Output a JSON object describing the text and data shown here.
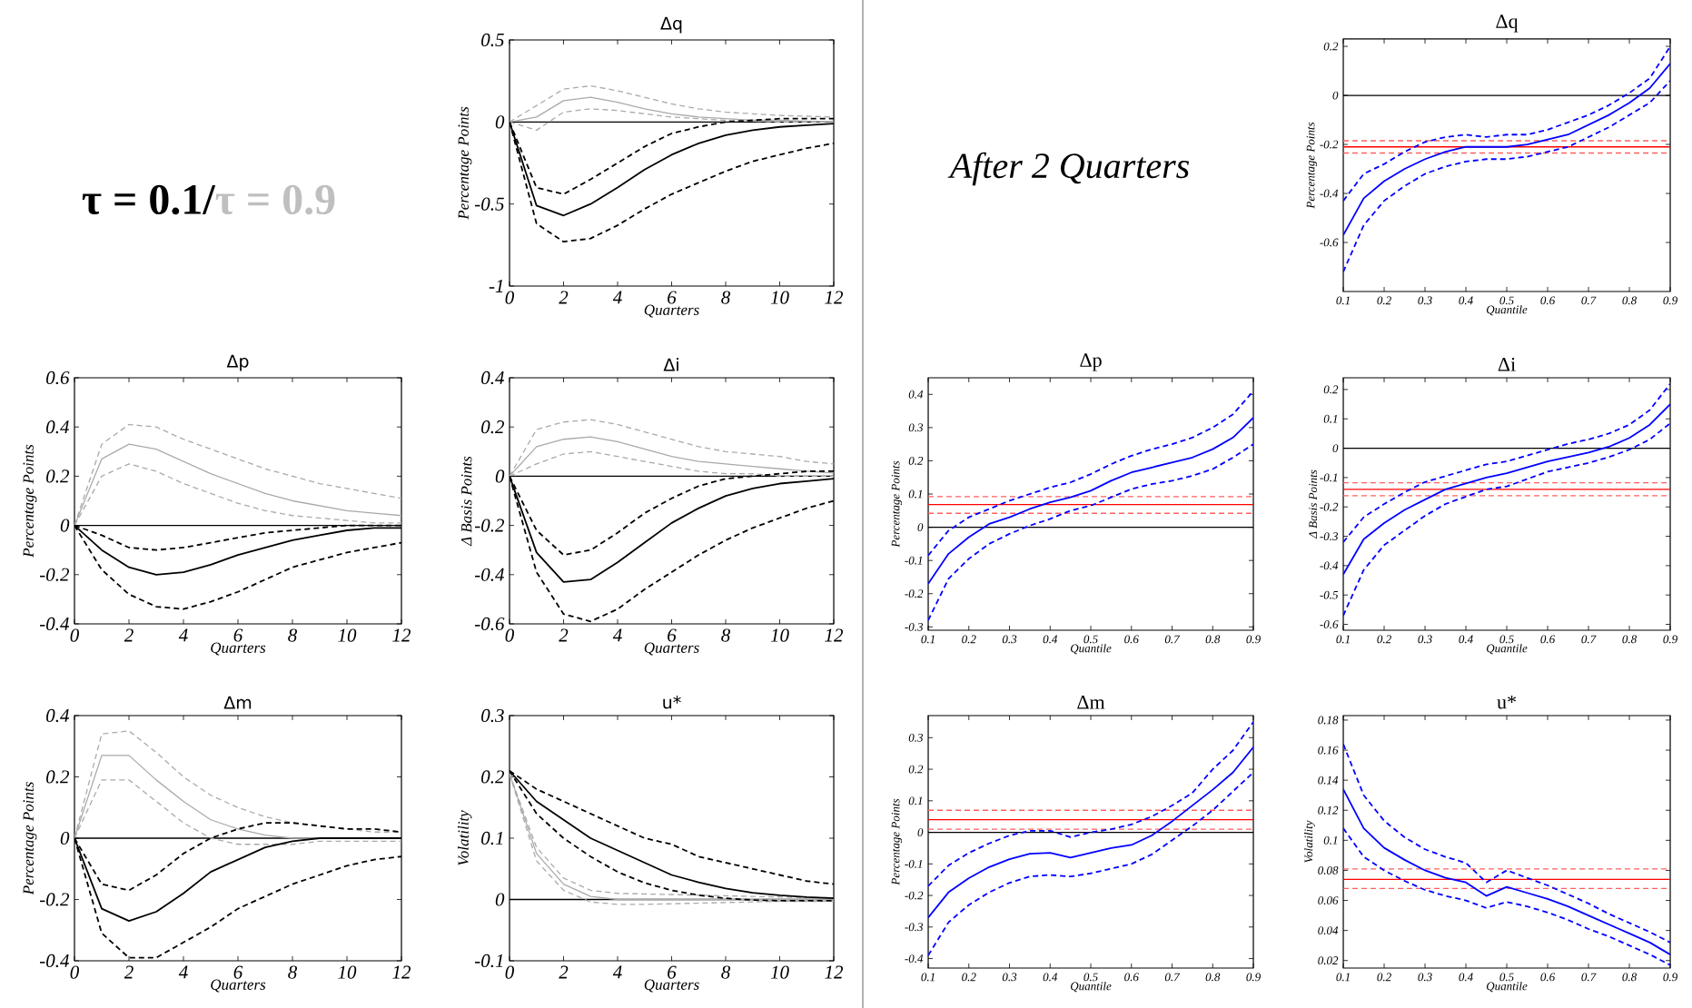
{
  "chart_data": [
    {
      "type": "other",
      "annotations": [
        "τ = 0.1/",
        "τ = 0.9"
      ]
    },
    {
      "type": "line",
      "title": "Δq",
      "xlabel": "Quarters",
      "ylabel": "Percentage Points",
      "x": [
        0,
        1,
        2,
        3,
        4,
        5,
        6,
        7,
        8,
        9,
        10,
        11,
        12
      ],
      "xlim": [
        0,
        12
      ],
      "xticks": [
        0,
        2,
        4,
        6,
        8,
        10,
        12
      ],
      "ylim": [
        -1,
        0.5
      ],
      "yticks": [
        -1,
        -0.5,
        0,
        0.5
      ],
      "marker": "none",
      "series": [
        {
          "color": "#aaaaaa",
          "line_style": "solid",
          "values": [
            0,
            0.03,
            0.13,
            0.15,
            0.12,
            0.08,
            0.05,
            0.03,
            0.02,
            0.01,
            0.01,
            0.005,
            0
          ]
        },
        {
          "color": "#aaaaaa",
          "line_style": "dashed",
          "values": [
            0,
            0.1,
            0.2,
            0.22,
            0.19,
            0.15,
            0.11,
            0.08,
            0.06,
            0.05,
            0.04,
            0.035,
            0.03
          ]
        },
        {
          "color": "#aaaaaa",
          "line_style": "dashed",
          "values": [
            0,
            -0.05,
            0.06,
            0.08,
            0.07,
            0.05,
            0.03,
            0.02,
            0.01,
            0.005,
            0,
            0,
            0
          ]
        },
        {
          "color": "#000000",
          "line_style": "solid",
          "values": [
            0,
            -0.51,
            -0.57,
            -0.5,
            -0.4,
            -0.29,
            -0.2,
            -0.13,
            -0.08,
            -0.05,
            -0.03,
            -0.02,
            -0.01
          ]
        },
        {
          "color": "#000000",
          "line_style": "dashed",
          "values": [
            0,
            -0.4,
            -0.44,
            -0.35,
            -0.25,
            -0.15,
            -0.07,
            -0.03,
            0,
            0.01,
            0.02,
            0.02,
            0.02
          ]
        },
        {
          "color": "#000000",
          "line_style": "dashed",
          "values": [
            0,
            -0.62,
            -0.73,
            -0.71,
            -0.63,
            -0.53,
            -0.44,
            -0.37,
            -0.3,
            -0.24,
            -0.2,
            -0.16,
            -0.13
          ]
        }
      ],
      "ref_lines": [
        {
          "axis": "y",
          "value": 0,
          "color": "#000000",
          "line_style": "solid"
        }
      ]
    },
    {
      "type": "other",
      "title": "After 2 Quarters"
    },
    {
      "type": "line",
      "title": "Δq",
      "xlabel": "Quantile",
      "ylabel": "Percentage Points",
      "x": [
        0.1,
        0.15,
        0.2,
        0.25,
        0.3,
        0.35,
        0.4,
        0.45,
        0.5,
        0.55,
        0.6,
        0.65,
        0.7,
        0.75,
        0.8,
        0.85,
        0.9
      ],
      "xlim": [
        0.1,
        0.9
      ],
      "xticks": [
        0.1,
        0.2,
        0.3,
        0.4,
        0.5,
        0.6,
        0.7,
        0.8,
        0.9
      ],
      "ylim": [
        -0.8,
        0.23
      ],
      "yticks": [
        -0.6,
        -0.4,
        -0.2,
        0,
        0.2
      ],
      "marker": "none",
      "series": [
        {
          "color": "#0000ff",
          "line_style": "solid",
          "values": [
            -0.57,
            -0.42,
            -0.35,
            -0.3,
            -0.26,
            -0.23,
            -0.21,
            -0.21,
            -0.21,
            -0.2,
            -0.18,
            -0.16,
            -0.12,
            -0.08,
            -0.03,
            0.03,
            0.13
          ]
        },
        {
          "color": "#0000ff",
          "line_style": "dashed",
          "values": [
            -0.43,
            -0.32,
            -0.28,
            -0.23,
            -0.19,
            -0.17,
            -0.16,
            -0.17,
            -0.16,
            -0.16,
            -0.14,
            -0.11,
            -0.08,
            -0.04,
            0.01,
            0.07,
            0.2
          ]
        },
        {
          "color": "#0000ff",
          "line_style": "dashed",
          "values": [
            -0.72,
            -0.53,
            -0.43,
            -0.37,
            -0.32,
            -0.29,
            -0.27,
            -0.26,
            -0.26,
            -0.25,
            -0.23,
            -0.21,
            -0.17,
            -0.13,
            -0.08,
            -0.03,
            0.06
          ]
        }
      ],
      "ref_lines": [
        {
          "axis": "y",
          "value": 0,
          "color": "#000000",
          "line_style": "solid"
        },
        {
          "axis": "y",
          "value": -0.21,
          "color": "#ff0000",
          "line_style": "solid"
        },
        {
          "axis": "y",
          "value": -0.185,
          "color": "#ff6060",
          "line_style": "dashed"
        },
        {
          "axis": "y",
          "value": -0.235,
          "color": "#ff6060",
          "line_style": "dashed"
        }
      ]
    },
    {
      "type": "line",
      "title": "Δp",
      "xlabel": "Quarters",
      "ylabel": "Percentage Points",
      "x": [
        0,
        1,
        2,
        3,
        4,
        5,
        6,
        7,
        8,
        9,
        10,
        11,
        12
      ],
      "xlim": [
        0,
        12
      ],
      "xticks": [
        0,
        2,
        4,
        6,
        8,
        10,
        12
      ],
      "ylim": [
        -0.4,
        0.6
      ],
      "yticks": [
        -0.4,
        -0.2,
        0,
        0.2,
        0.4,
        0.6
      ],
      "marker": "none",
      "series": [
        {
          "color": "#aaaaaa",
          "line_style": "solid",
          "values": [
            0,
            0.27,
            0.33,
            0.31,
            0.26,
            0.21,
            0.17,
            0.13,
            0.1,
            0.08,
            0.06,
            0.05,
            0.04
          ]
        },
        {
          "color": "#aaaaaa",
          "line_style": "dashed",
          "values": [
            0,
            0.33,
            0.41,
            0.4,
            0.35,
            0.31,
            0.27,
            0.23,
            0.2,
            0.17,
            0.15,
            0.13,
            0.11
          ]
        },
        {
          "color": "#aaaaaa",
          "line_style": "dashed",
          "values": [
            0,
            0.2,
            0.25,
            0.22,
            0.17,
            0.13,
            0.09,
            0.06,
            0.04,
            0.03,
            0.02,
            0.01,
            0.01
          ]
        },
        {
          "color": "#000000",
          "line_style": "solid",
          "values": [
            0,
            -0.1,
            -0.17,
            -0.2,
            -0.19,
            -0.16,
            -0.12,
            -0.09,
            -0.06,
            -0.04,
            -0.02,
            -0.01,
            -0.01
          ]
        },
        {
          "color": "#000000",
          "line_style": "dashed",
          "values": [
            0,
            -0.04,
            -0.09,
            -0.1,
            -0.09,
            -0.07,
            -0.05,
            -0.03,
            -0.02,
            -0.01,
            0,
            0,
            0
          ]
        },
        {
          "color": "#000000",
          "line_style": "dashed",
          "values": [
            0,
            -0.18,
            -0.28,
            -0.33,
            -0.34,
            -0.31,
            -0.27,
            -0.22,
            -0.17,
            -0.14,
            -0.11,
            -0.09,
            -0.07
          ]
        }
      ],
      "ref_lines": [
        {
          "axis": "y",
          "value": 0,
          "color": "#000000",
          "line_style": "solid"
        }
      ]
    },
    {
      "type": "line",
      "title": "Δi",
      "xlabel": "Quarters",
      "ylabel": "Δ Basis Points",
      "x": [
        0,
        1,
        2,
        3,
        4,
        5,
        6,
        7,
        8,
        9,
        10,
        11,
        12
      ],
      "xlim": [
        0,
        12
      ],
      "xticks": [
        0,
        2,
        4,
        6,
        8,
        10,
        12
      ],
      "ylim": [
        -0.6,
        0.4
      ],
      "yticks": [
        -0.6,
        -0.4,
        -0.2,
        0,
        0.2,
        0.4
      ],
      "marker": "none",
      "series": [
        {
          "color": "#aaaaaa",
          "line_style": "solid",
          "values": [
            0,
            0.12,
            0.15,
            0.16,
            0.14,
            0.11,
            0.08,
            0.06,
            0.05,
            0.04,
            0.03,
            0.02,
            0.013
          ]
        },
        {
          "color": "#aaaaaa",
          "line_style": "dashed",
          "values": [
            0,
            0.19,
            0.22,
            0.23,
            0.21,
            0.18,
            0.15,
            0.12,
            0.1,
            0.09,
            0.08,
            0.06,
            0.05
          ]
        },
        {
          "color": "#aaaaaa",
          "line_style": "dashed",
          "values": [
            0,
            0.05,
            0.09,
            0.1,
            0.08,
            0.06,
            0.04,
            0.02,
            0.01,
            0.01,
            0,
            0,
            0
          ]
        },
        {
          "color": "#000000",
          "line_style": "solid",
          "values": [
            0,
            -0.31,
            -0.43,
            -0.42,
            -0.35,
            -0.27,
            -0.19,
            -0.13,
            -0.08,
            -0.05,
            -0.03,
            -0.02,
            -0.01
          ]
        },
        {
          "color": "#000000",
          "line_style": "dashed",
          "values": [
            0,
            -0.22,
            -0.32,
            -0.3,
            -0.23,
            -0.15,
            -0.09,
            -0.04,
            -0.01,
            0,
            0.01,
            0.02,
            0.02
          ]
        },
        {
          "color": "#000000",
          "line_style": "dashed",
          "values": [
            0,
            -0.39,
            -0.56,
            -0.59,
            -0.54,
            -0.46,
            -0.39,
            -0.32,
            -0.26,
            -0.21,
            -0.17,
            -0.13,
            -0.1
          ]
        }
      ],
      "ref_lines": [
        {
          "axis": "y",
          "value": 0,
          "color": "#000000",
          "line_style": "solid"
        }
      ]
    },
    {
      "type": "line",
      "title": "Δp",
      "xlabel": "Quantile",
      "ylabel": "Percentage Points",
      "x": [
        0.1,
        0.15,
        0.2,
        0.25,
        0.3,
        0.35,
        0.4,
        0.45,
        0.5,
        0.55,
        0.6,
        0.65,
        0.7,
        0.75,
        0.8,
        0.85,
        0.9
      ],
      "xlim": [
        0.1,
        0.9
      ],
      "xticks": [
        0.1,
        0.2,
        0.3,
        0.4,
        0.5,
        0.6,
        0.7,
        0.8,
        0.9
      ],
      "ylim": [
        -0.31,
        0.45
      ],
      "yticks": [
        -0.3,
        -0.2,
        -0.1,
        0,
        0.1,
        0.2,
        0.3,
        0.4
      ],
      "marker": "none",
      "series": [
        {
          "color": "#0000ff",
          "line_style": "solid",
          "values": [
            -0.17,
            -0.08,
            -0.03,
            0.01,
            0.03,
            0.055,
            0.075,
            0.09,
            0.11,
            0.14,
            0.165,
            0.18,
            0.195,
            0.21,
            0.235,
            0.27,
            0.33
          ]
        },
        {
          "color": "#0000ff",
          "line_style": "dashed",
          "values": [
            -0.085,
            -0.01,
            0.03,
            0.055,
            0.08,
            0.1,
            0.12,
            0.135,
            0.16,
            0.19,
            0.215,
            0.235,
            0.25,
            0.27,
            0.3,
            0.34,
            0.41
          ]
        },
        {
          "color": "#0000ff",
          "line_style": "dashed",
          "values": [
            -0.28,
            -0.155,
            -0.095,
            -0.05,
            -0.02,
            0.005,
            0.025,
            0.05,
            0.065,
            0.09,
            0.115,
            0.13,
            0.14,
            0.155,
            0.175,
            0.21,
            0.25
          ]
        }
      ],
      "ref_lines": [
        {
          "axis": "y",
          "value": 0,
          "color": "#000000",
          "line_style": "solid"
        },
        {
          "axis": "y",
          "value": 0.068,
          "color": "#ff0000",
          "line_style": "solid"
        },
        {
          "axis": "y",
          "value": 0.092,
          "color": "#ff6060",
          "line_style": "dashed"
        },
        {
          "axis": "y",
          "value": 0.042,
          "color": "#ff6060",
          "line_style": "dashed"
        }
      ]
    },
    {
      "type": "line",
      "title": "Δi",
      "xlabel": "Quantile",
      "ylabel": "Δ Basis Points",
      "x": [
        0.1,
        0.15,
        0.2,
        0.25,
        0.3,
        0.35,
        0.4,
        0.45,
        0.5,
        0.55,
        0.6,
        0.65,
        0.7,
        0.75,
        0.8,
        0.85,
        0.9
      ],
      "xlim": [
        0.1,
        0.9
      ],
      "xticks": [
        0.1,
        0.2,
        0.3,
        0.4,
        0.5,
        0.6,
        0.7,
        0.8,
        0.9
      ],
      "ylim": [
        -0.62,
        0.24
      ],
      "yticks": [
        -0.6,
        -0.5,
        -0.4,
        -0.3,
        -0.2,
        -0.1,
        0,
        0.1,
        0.2
      ],
      "marker": "none",
      "series": [
        {
          "color": "#0000ff",
          "line_style": "solid",
          "values": [
            -0.43,
            -0.31,
            -0.255,
            -0.21,
            -0.175,
            -0.14,
            -0.12,
            -0.1,
            -0.085,
            -0.065,
            -0.045,
            -0.03,
            -0.015,
            0.005,
            0.035,
            0.08,
            0.15
          ]
        },
        {
          "color": "#0000ff",
          "line_style": "dashed",
          "values": [
            -0.32,
            -0.235,
            -0.19,
            -0.15,
            -0.115,
            -0.095,
            -0.075,
            -0.055,
            -0.045,
            -0.025,
            -0.005,
            0.015,
            0.03,
            0.05,
            0.08,
            0.13,
            0.22
          ]
        },
        {
          "color": "#0000ff",
          "line_style": "dashed",
          "values": [
            -0.57,
            -0.415,
            -0.33,
            -0.28,
            -0.23,
            -0.19,
            -0.165,
            -0.14,
            -0.13,
            -0.105,
            -0.08,
            -0.065,
            -0.05,
            -0.03,
            -0.005,
            0.03,
            0.085
          ]
        }
      ],
      "ref_lines": [
        {
          "axis": "y",
          "value": 0,
          "color": "#000000",
          "line_style": "solid"
        },
        {
          "axis": "y",
          "value": -0.14,
          "color": "#ff0000",
          "line_style": "solid"
        },
        {
          "axis": "y",
          "value": -0.118,
          "color": "#ff6060",
          "line_style": "dashed"
        },
        {
          "axis": "y",
          "value": -0.162,
          "color": "#ff6060",
          "line_style": "dashed"
        }
      ]
    },
    {
      "type": "line",
      "title": "Δm",
      "xlabel": "Quarters",
      "ylabel": "Percentage Points",
      "x": [
        0,
        1,
        2,
        3,
        4,
        5,
        6,
        7,
        8,
        9,
        10,
        11,
        12
      ],
      "xlim": [
        0,
        12
      ],
      "xticks": [
        0,
        2,
        4,
        6,
        8,
        10,
        12
      ],
      "ylim": [
        -0.4,
        0.4
      ],
      "yticks": [
        -0.4,
        -0.2,
        0,
        0.2,
        0.4
      ],
      "marker": "none",
      "series": [
        {
          "color": "#aaaaaa",
          "line_style": "solid",
          "values": [
            0,
            0.27,
            0.27,
            0.19,
            0.12,
            0.06,
            0.03,
            0.01,
            0,
            0,
            0,
            0,
            0
          ]
        },
        {
          "color": "#aaaaaa",
          "line_style": "dashed",
          "values": [
            0,
            0.34,
            0.35,
            0.28,
            0.2,
            0.14,
            0.1,
            0.07,
            0.05,
            0.04,
            0.03,
            0.02,
            0.02
          ]
        },
        {
          "color": "#aaaaaa",
          "line_style": "dashed",
          "values": [
            0,
            0.19,
            0.19,
            0.12,
            0.05,
            0,
            -0.02,
            -0.02,
            -0.02,
            -0.01,
            -0.01,
            -0.01,
            -0.01
          ]
        },
        {
          "color": "#000000",
          "line_style": "solid",
          "values": [
            0,
            -0.23,
            -0.27,
            -0.24,
            -0.18,
            -0.11,
            -0.07,
            -0.03,
            -0.01,
            0,
            0,
            0,
            0
          ]
        },
        {
          "color": "#000000",
          "line_style": "dashed",
          "values": [
            0,
            -0.15,
            -0.17,
            -0.12,
            -0.05,
            0,
            0.03,
            0.05,
            0.05,
            0.04,
            0.03,
            0.03,
            0.02
          ]
        },
        {
          "color": "#000000",
          "line_style": "dashed",
          "values": [
            0,
            -0.31,
            -0.39,
            -0.39,
            -0.34,
            -0.29,
            -0.23,
            -0.19,
            -0.15,
            -0.12,
            -0.09,
            -0.07,
            -0.06
          ]
        }
      ],
      "ref_lines": [
        {
          "axis": "y",
          "value": 0,
          "color": "#000000",
          "line_style": "solid"
        }
      ]
    },
    {
      "type": "line",
      "title": "u*",
      "xlabel": "Quarters",
      "ylabel": "Volatility",
      "x": [
        0,
        1,
        2,
        3,
        4,
        5,
        6,
        7,
        8,
        9,
        10,
        11,
        12
      ],
      "xlim": [
        0,
        12
      ],
      "xticks": [
        0,
        2,
        4,
        6,
        8,
        10,
        12
      ],
      "ylim": [
        -0.1,
        0.3
      ],
      "yticks": [
        -0.1,
        0,
        0.1,
        0.2,
        0.3
      ],
      "marker": "none",
      "series": [
        {
          "color": "#aaaaaa",
          "line_style": "solid",
          "values": [
            0.205,
            0.075,
            0.025,
            0.005,
            0,
            0,
            0,
            0,
            0,
            0,
            0,
            0,
            0
          ]
        },
        {
          "color": "#aaaaaa",
          "line_style": "dashed",
          "values": [
            0.205,
            0.085,
            0.035,
            0.015,
            0.01,
            0.009,
            0.008,
            0.007,
            0.006,
            0.005,
            0.004,
            0.003,
            0.003
          ]
        },
        {
          "color": "#aaaaaa",
          "line_style": "dashed",
          "values": [
            0.205,
            0.063,
            0.015,
            -0.004,
            -0.008,
            -0.008,
            -0.007,
            -0.006,
            -0.005,
            -0.004,
            -0.003,
            -0.003,
            -0.003
          ]
        },
        {
          "color": "#000000",
          "line_style": "solid",
          "values": [
            0.21,
            0.16,
            0.13,
            0.1,
            0.08,
            0.06,
            0.04,
            0.028,
            0.018,
            0.011,
            0.007,
            0.004,
            0.002
          ]
        },
        {
          "color": "#000000",
          "line_style": "dashed",
          "values": [
            0.21,
            0.18,
            0.16,
            0.14,
            0.12,
            0.1,
            0.09,
            0.07,
            0.06,
            0.05,
            0.04,
            0.03,
            0.025
          ]
        },
        {
          "color": "#000000",
          "line_style": "dashed",
          "values": [
            0.21,
            0.14,
            0.1,
            0.07,
            0.045,
            0.027,
            0.015,
            0.007,
            0.002,
            -0.001,
            -0.002,
            -0.002,
            -0.002
          ]
        }
      ],
      "ref_lines": [
        {
          "axis": "y",
          "value": 0,
          "color": "#000000",
          "line_style": "solid"
        }
      ]
    },
    {
      "type": "line",
      "title": "Δm",
      "xlabel": "Quantile",
      "ylabel": "Percentage Points",
      "x": [
        0.1,
        0.15,
        0.2,
        0.25,
        0.3,
        0.35,
        0.4,
        0.45,
        0.5,
        0.55,
        0.6,
        0.65,
        0.7,
        0.75,
        0.8,
        0.85,
        0.9
      ],
      "xlim": [
        0.1,
        0.9
      ],
      "xticks": [
        0.1,
        0.2,
        0.3,
        0.4,
        0.5,
        0.6,
        0.7,
        0.8,
        0.9
      ],
      "ylim": [
        -0.43,
        0.37
      ],
      "yticks": [
        -0.4,
        -0.3,
        -0.2,
        -0.1,
        0,
        0.1,
        0.2,
        0.3
      ],
      "marker": "none",
      "series": [
        {
          "color": "#0000ff",
          "line_style": "solid",
          "values": [
            -0.27,
            -0.19,
            -0.145,
            -0.11,
            -0.085,
            -0.068,
            -0.065,
            -0.08,
            -0.065,
            -0.05,
            -0.04,
            -0.01,
            0.035,
            0.085,
            0.135,
            0.19,
            0.27
          ]
        },
        {
          "color": "#0000ff",
          "line_style": "dashed",
          "values": [
            -0.17,
            -0.105,
            -0.065,
            -0.035,
            -0.01,
            0.005,
            0.005,
            -0.015,
            0,
            0.01,
            0.025,
            0.05,
            0.085,
            0.125,
            0.2,
            0.26,
            0.35
          ]
        },
        {
          "color": "#0000ff",
          "line_style": "dashed",
          "values": [
            -0.39,
            -0.285,
            -0.23,
            -0.19,
            -0.16,
            -0.14,
            -0.135,
            -0.14,
            -0.13,
            -0.115,
            -0.1,
            -0.07,
            -0.025,
            0.02,
            0.07,
            0.13,
            0.19
          ]
        }
      ],
      "ref_lines": [
        {
          "axis": "y",
          "value": 0,
          "color": "#000000",
          "line_style": "solid"
        },
        {
          "axis": "y",
          "value": 0.04,
          "color": "#ff0000",
          "line_style": "solid"
        },
        {
          "axis": "y",
          "value": 0.07,
          "color": "#ff6060",
          "line_style": "dashed"
        },
        {
          "axis": "y",
          "value": 0.01,
          "color": "#ff6060",
          "line_style": "dashed"
        }
      ]
    },
    {
      "type": "line",
      "title": "u*",
      "xlabel": "Quantile",
      "ylabel": "Volatility",
      "x": [
        0.1,
        0.15,
        0.2,
        0.25,
        0.3,
        0.35,
        0.4,
        0.45,
        0.5,
        0.55,
        0.6,
        0.65,
        0.7,
        0.75,
        0.8,
        0.85,
        0.9
      ],
      "xlim": [
        0.1,
        0.9
      ],
      "xticks": [
        0.1,
        0.2,
        0.3,
        0.4,
        0.5,
        0.6,
        0.7,
        0.8,
        0.9
      ],
      "ylim": [
        0.015,
        0.183
      ],
      "yticks": [
        0.02,
        0.04,
        0.06,
        0.08,
        0.1,
        0.12,
        0.14,
        0.16,
        0.18
      ],
      "marker": "none",
      "series": [
        {
          "color": "#0000ff",
          "line_style": "solid",
          "values": [
            0.134,
            0.108,
            0.095,
            0.087,
            0.08,
            0.075,
            0.072,
            0.063,
            0.069,
            0.065,
            0.061,
            0.056,
            0.05,
            0.044,
            0.038,
            0.032,
            0.024
          ]
        },
        {
          "color": "#0000ff",
          "line_style": "dashed",
          "values": [
            0.164,
            0.13,
            0.113,
            0.102,
            0.094,
            0.089,
            0.085,
            0.072,
            0.08,
            0.075,
            0.07,
            0.064,
            0.058,
            0.051,
            0.045,
            0.039,
            0.032
          ]
        },
        {
          "color": "#0000ff",
          "line_style": "dashed",
          "values": [
            0.108,
            0.089,
            0.08,
            0.073,
            0.067,
            0.063,
            0.06,
            0.055,
            0.059,
            0.056,
            0.052,
            0.047,
            0.041,
            0.036,
            0.03,
            0.024,
            0.017
          ]
        }
      ],
      "ref_lines": [
        {
          "axis": "y",
          "value": 0.074,
          "color": "#ff0000",
          "line_style": "solid"
        },
        {
          "axis": "y",
          "value": 0.081,
          "color": "#ff6060",
          "line_style": "dashed"
        },
        {
          "axis": "y",
          "value": 0.068,
          "color": "#ff6060",
          "line_style": "dashed"
        }
      ]
    }
  ]
}
